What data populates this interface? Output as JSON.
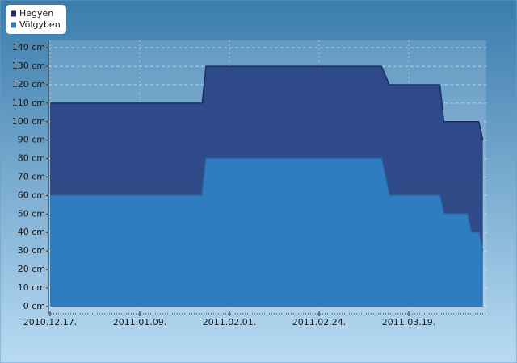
{
  "chart_data": {
    "type": "area",
    "x": [
      "2010-12-17",
      "2011-01-25",
      "2011-01-26",
      "2011-03-12",
      "2011-03-14",
      "2011-03-27",
      "2011-03-28",
      "2011-04-03",
      "2011-04-04",
      "2011-04-06",
      "2011-04-07"
    ],
    "series": [
      {
        "name": "Hegyen",
        "color": "#2a4584",
        "values": [
          110,
          110,
          130,
          130,
          120,
          120,
          100,
          100,
          100,
          100,
          90
        ]
      },
      {
        "name": "Völgyben",
        "color": "#2f7cc0",
        "values": [
          60,
          60,
          80,
          80,
          60,
          60,
          50,
          50,
          40,
          40,
          30
        ]
      }
    ],
    "xlim": [
      "2010-12-17",
      "2011-04-08"
    ],
    "xticks": [
      {
        "value": "2010-12-17",
        "label": "2010.12.17."
      },
      {
        "value": "2011-01-09",
        "label": "2011.01.09."
      },
      {
        "value": "2011-02-01",
        "label": "2011.02.01."
      },
      {
        "value": "2011-02-24",
        "label": "2011.02.24."
      },
      {
        "value": "2011-03-19",
        "label": "2011.03.19."
      }
    ],
    "ylim": [
      -4,
      144
    ],
    "yticks": [
      {
        "value": 0,
        "label": "0 cm"
      },
      {
        "value": 10,
        "label": "10 cm"
      },
      {
        "value": 20,
        "label": "20 cm"
      },
      {
        "value": 30,
        "label": "30 cm"
      },
      {
        "value": 40,
        "label": "40 cm"
      },
      {
        "value": 50,
        "label": "50 cm"
      },
      {
        "value": 60,
        "label": "60 cm"
      },
      {
        "value": 70,
        "label": "70 cm"
      },
      {
        "value": 80,
        "label": "80 cm"
      },
      {
        "value": 90,
        "label": "90 cm"
      },
      {
        "value": 100,
        "label": "100 cm"
      },
      {
        "value": 110,
        "label": "110 cm"
      },
      {
        "value": 120,
        "label": "120 cm"
      },
      {
        "value": 130,
        "label": "130 cm"
      },
      {
        "value": 140,
        "label": "140 cm"
      }
    ],
    "grid": true,
    "legend": "top-left"
  }
}
